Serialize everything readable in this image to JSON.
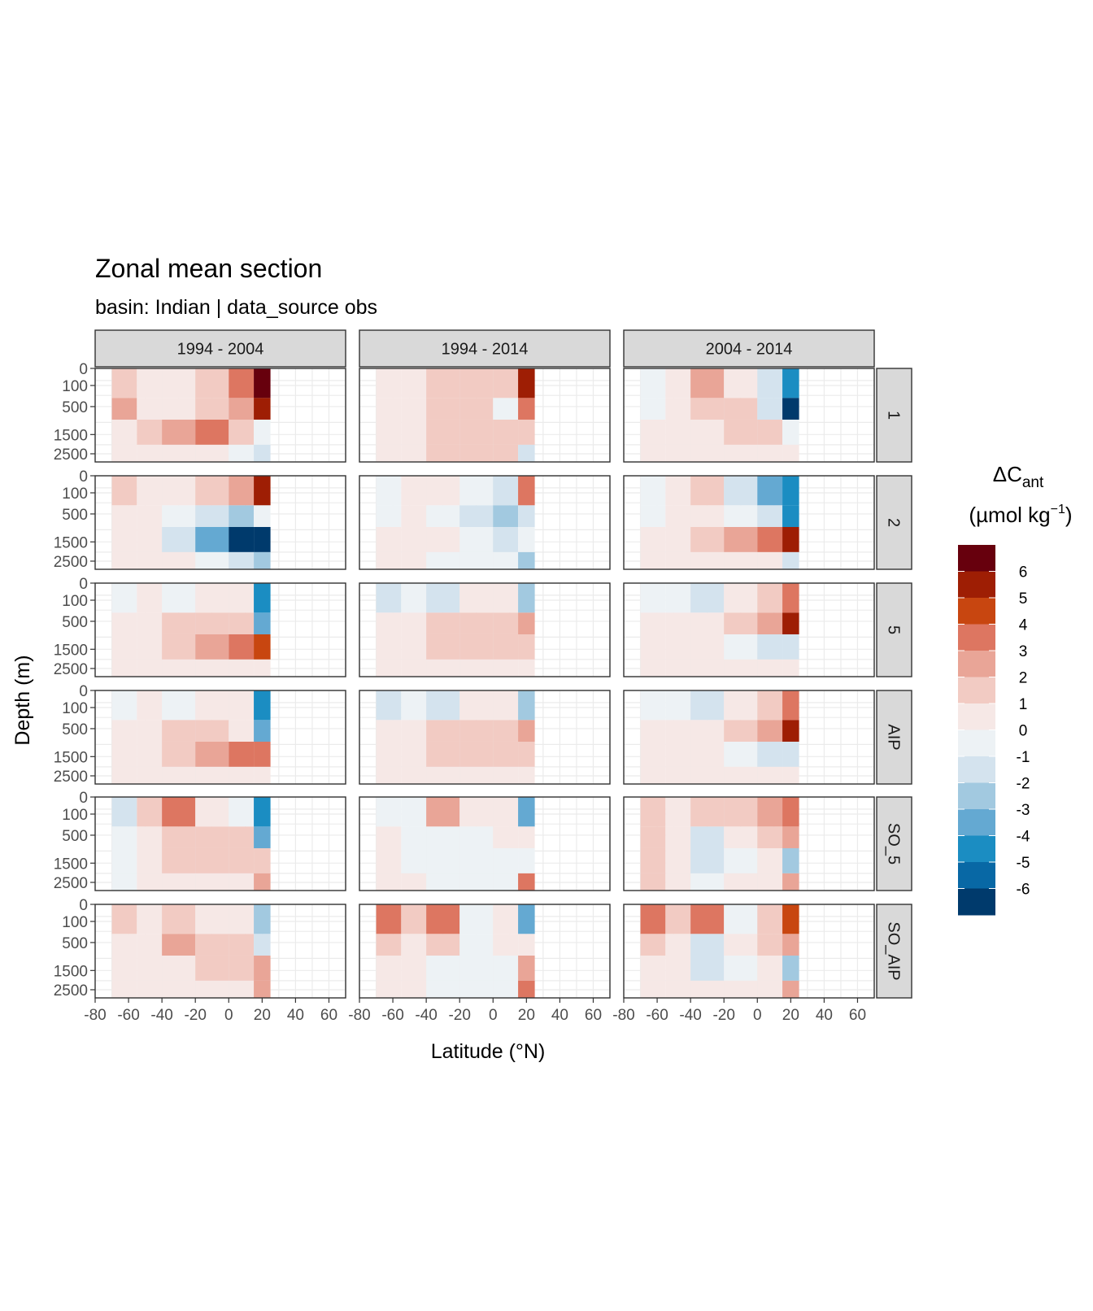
{
  "title": "Zonal mean section",
  "subtitle": "basin: Indian | data_source obs",
  "colors": {
    "strip_fill": "#d9d9d9",
    "panel_border": "#333333",
    "grid": "#ebebeb",
    "scale": [
      "#67000d",
      "#9e1e04",
      "#c84610",
      "#dd7661",
      "#e9a597",
      "#f2cbc3",
      "#f6e8e6",
      "#edf2f5",
      "#d4e3ee",
      "#a2c9e0",
      "#64a9d2",
      "#1b8dc2",
      "#0868a5",
      "#003a6c"
    ]
  },
  "chart_data": {
    "type": "heatmap",
    "title": "Zonal mean section",
    "subtitle": "basin: Indian | data_source obs",
    "xlabel": "Latitude (°N)",
    "ylabel": "Depth (m)",
    "xlim": [
      -80,
      70
    ],
    "x_ticks": [
      "-80",
      "-60",
      "-40",
      "-20",
      "0",
      "20",
      "40",
      "60"
    ],
    "y_ticks": [
      "0",
      "100",
      "500",
      "1500",
      "2500"
    ],
    "y_scale": "sqrt-reversed",
    "ylim": [
      3000,
      0
    ],
    "columns": [
      "1994 - 2004",
      "1994 - 2014",
      "2004 - 2014"
    ],
    "rows": [
      "1",
      "2",
      "5",
      "AIP",
      "SO_5",
      "SO_AIP"
    ],
    "data_lat_range": [
      -70,
      25
    ],
    "legend": {
      "title_main": "ΔC",
      "title_sub": "ant",
      "title_units_open": "(µmol kg",
      "title_units_sup": "−1",
      "title_units_close": ")",
      "labels": [
        "6",
        "5",
        "4",
        "3",
        "2",
        "1",
        "0",
        "-1",
        "-2",
        "-3",
        "-4",
        "-5",
        "-6"
      ],
      "position": "right"
    },
    "cell_levels": {
      "lat_bins": [
        -70,
        -55,
        -40,
        -20,
        0,
        15,
        25
      ],
      "depth_bins": [
        0,
        300,
        900,
        2000,
        3000
      ],
      "values": [
        [
          [
            [
              1,
              0,
              0,
              1,
              3,
              6
            ],
            [
              2,
              0,
              0,
              1,
              2,
              5
            ],
            [
              0,
              1,
              2,
              3,
              1,
              -1
            ],
            [
              0,
              0,
              0,
              0,
              -1,
              -2
            ]
          ],
          [
            [
              0,
              0,
              1,
              1,
              1,
              5
            ],
            [
              0,
              0,
              1,
              1,
              -1,
              3
            ],
            [
              0,
              0,
              1,
              1,
              1,
              1
            ],
            [
              0,
              0,
              1,
              1,
              1,
              -2
            ]
          ],
          [
            [
              -1,
              0,
              2,
              0,
              -2,
              -5
            ],
            [
              -1,
              0,
              1,
              1,
              -2,
              -6
            ],
            [
              0,
              0,
              0,
              1,
              1,
              -1
            ],
            [
              0,
              0,
              0,
              0,
              0,
              0
            ]
          ]
        ],
        [
          [
            [
              1,
              0,
              0,
              1,
              2,
              5
            ],
            [
              0,
              0,
              -1,
              -2,
              -3,
              -1
            ],
            [
              0,
              0,
              -2,
              -4,
              -6,
              -6
            ],
            [
              0,
              0,
              0,
              -1,
              -2,
              -3
            ]
          ],
          [
            [
              -1,
              0,
              0,
              -1,
              -2,
              3
            ],
            [
              -1,
              0,
              -1,
              -2,
              -3,
              -2
            ],
            [
              0,
              0,
              0,
              -1,
              -2,
              -1
            ],
            [
              0,
              0,
              -1,
              -1,
              -1,
              -3
            ]
          ],
          [
            [
              -1,
              0,
              1,
              -2,
              -4,
              -5
            ],
            [
              -1,
              0,
              0,
              -1,
              -2,
              -5
            ],
            [
              0,
              0,
              1,
              2,
              3,
              5
            ],
            [
              0,
              0,
              0,
              0,
              0,
              -2
            ]
          ]
        ],
        [
          [
            [
              -1,
              0,
              -1,
              0,
              0,
              -5
            ],
            [
              0,
              0,
              1,
              1,
              1,
              -4
            ],
            [
              0,
              0,
              1,
              2,
              3,
              4
            ],
            [
              0,
              0,
              0,
              0,
              0,
              0
            ]
          ],
          [
            [
              -2,
              -1,
              -2,
              0,
              0,
              -3
            ],
            [
              0,
              0,
              1,
              1,
              1,
              2
            ],
            [
              0,
              0,
              1,
              1,
              1,
              1
            ],
            [
              0,
              0,
              0,
              0,
              0,
              0
            ]
          ],
          [
            [
              -1,
              -1,
              -2,
              0,
              1,
              3
            ],
            [
              0,
              0,
              0,
              1,
              2,
              5
            ],
            [
              0,
              0,
              0,
              -1,
              -2,
              -2
            ],
            [
              0,
              0,
              0,
              0,
              0,
              0
            ]
          ]
        ],
        [
          [
            [
              -1,
              0,
              -1,
              0,
              0,
              -5
            ],
            [
              0,
              0,
              1,
              1,
              0,
              -4
            ],
            [
              0,
              0,
              1,
              2,
              3,
              3
            ],
            [
              0,
              0,
              0,
              0,
              0,
              0
            ]
          ],
          [
            [
              -2,
              -1,
              -2,
              0,
              0,
              -3
            ],
            [
              0,
              0,
              1,
              1,
              1,
              2
            ],
            [
              0,
              0,
              1,
              1,
              1,
              1
            ],
            [
              0,
              0,
              0,
              0,
              0,
              0
            ]
          ],
          [
            [
              -1,
              -1,
              -2,
              0,
              1,
              3
            ],
            [
              0,
              0,
              0,
              1,
              2,
              5
            ],
            [
              0,
              0,
              0,
              -1,
              -2,
              -2
            ],
            [
              0,
              0,
              0,
              0,
              0,
              0
            ]
          ]
        ],
        [
          [
            [
              -2,
              1,
              3,
              0,
              -1,
              -5
            ],
            [
              -1,
              0,
              1,
              1,
              1,
              -4
            ],
            [
              -1,
              0,
              1,
              1,
              1,
              1
            ],
            [
              -1,
              0,
              0,
              0,
              0,
              2
            ]
          ],
          [
            [
              -1,
              -1,
              2,
              0,
              0,
              -4
            ],
            [
              0,
              -1,
              -1,
              -1,
              0,
              0
            ],
            [
              0,
              -1,
              -1,
              -1,
              -1,
              -1
            ],
            [
              0,
              0,
              -1,
              -1,
              -1,
              3
            ]
          ],
          [
            [
              1,
              0,
              1,
              1,
              2,
              3
            ],
            [
              1,
              0,
              -2,
              0,
              1,
              2
            ],
            [
              1,
              0,
              -2,
              -1,
              0,
              -3
            ],
            [
              1,
              0,
              -1,
              0,
              0,
              2
            ]
          ]
        ],
        [
          [
            [
              1,
              0,
              1,
              0,
              0,
              -3
            ],
            [
              0,
              0,
              2,
              1,
              1,
              -2
            ],
            [
              0,
              0,
              0,
              1,
              1,
              2
            ],
            [
              0,
              0,
              0,
              0,
              0,
              2
            ]
          ],
          [
            [
              3,
              1,
              3,
              -1,
              0,
              -4
            ],
            [
              1,
              0,
              1,
              -1,
              0,
              0
            ],
            [
              0,
              0,
              -1,
              -1,
              -1,
              2
            ],
            [
              0,
              0,
              -1,
              -1,
              -1,
              3
            ]
          ],
          [
            [
              3,
              1,
              3,
              -1,
              1,
              4
            ],
            [
              1,
              0,
              -2,
              0,
              1,
              2
            ],
            [
              0,
              0,
              -2,
              -1,
              0,
              -3
            ],
            [
              0,
              0,
              0,
              0,
              0,
              2
            ]
          ]
        ]
      ]
    }
  }
}
